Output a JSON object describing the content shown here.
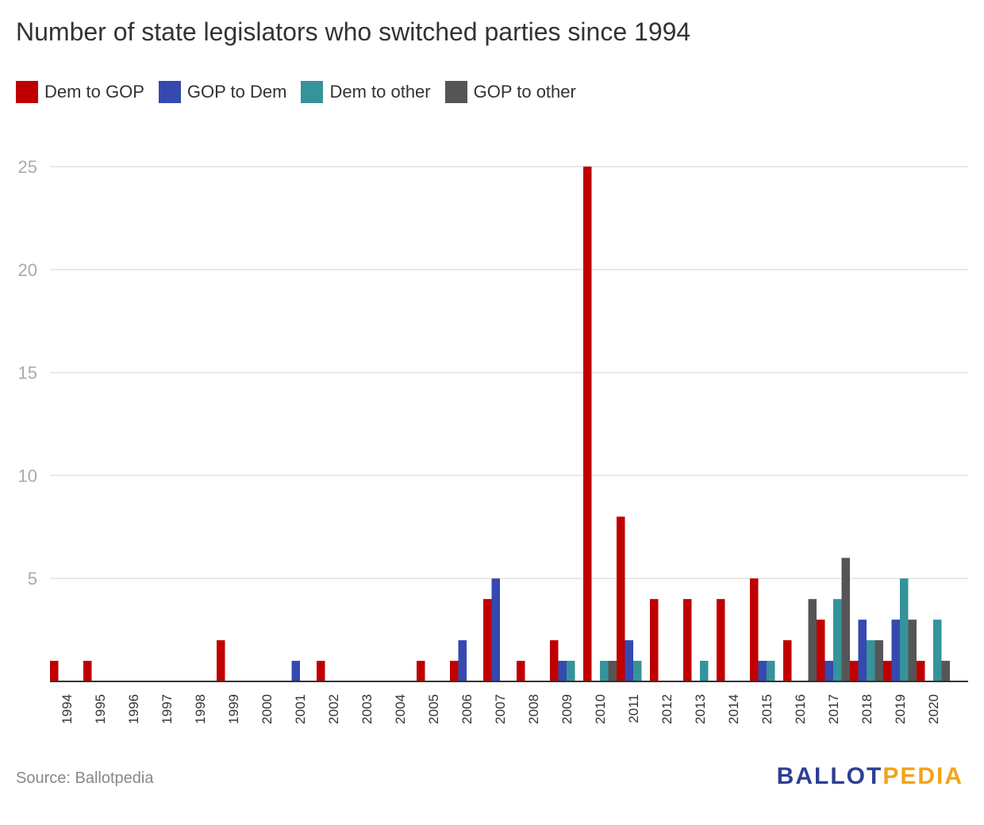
{
  "chart_data": {
    "type": "bar",
    "title": "Number of state legislators who switched parties since 1994",
    "xlabel": "",
    "ylabel": "",
    "ylim": [
      0,
      25
    ],
    "yticks": [
      5,
      10,
      15,
      20,
      25
    ],
    "categories": [
      "1994",
      "1995",
      "1996",
      "1997",
      "1998",
      "1999",
      "2000",
      "2001",
      "2002",
      "2003",
      "2004",
      "2005",
      "2006",
      "2007",
      "2008",
      "2009",
      "2010",
      "2011",
      "2012",
      "2013",
      "2014",
      "2015",
      "2016",
      "2017",
      "2018",
      "2019",
      "2020"
    ],
    "series": [
      {
        "name": "Dem to GOP",
        "color": "#c00000",
        "values": [
          1,
          1,
          0,
          0,
          0,
          2,
          0,
          0,
          1,
          0,
          0,
          1,
          1,
          4,
          1,
          2,
          25,
          8,
          4,
          4,
          4,
          5,
          2,
          3,
          1,
          1,
          1
        ]
      },
      {
        "name": "GOP to Dem",
        "color": "#344ab0",
        "values": [
          0,
          0,
          0,
          0,
          0,
          0,
          0,
          1,
          0,
          0,
          0,
          0,
          2,
          5,
          0,
          1,
          0,
          2,
          0,
          0,
          0,
          1,
          0,
          1,
          3,
          3,
          0
        ]
      },
      {
        "name": "Dem to other",
        "color": "#36939b",
        "values": [
          0,
          0,
          0,
          0,
          0,
          0,
          0,
          0,
          0,
          0,
          0,
          0,
          0,
          0,
          0,
          1,
          1,
          1,
          0,
          1,
          0,
          1,
          0,
          4,
          2,
          5,
          3
        ]
      },
      {
        "name": "GOP to other",
        "color": "#555555",
        "values": [
          0,
          0,
          0,
          0,
          0,
          0,
          0,
          0,
          0,
          0,
          0,
          0,
          0,
          0,
          0,
          0,
          1,
          0,
          0,
          0,
          0,
          0,
          4,
          6,
          2,
          3,
          1
        ]
      }
    ],
    "grid": true,
    "legend": "top-left"
  },
  "footer": {
    "source": "Source: Ballotpedia",
    "logo_part1": "BALLOT",
    "logo_part2": "PEDIA"
  }
}
